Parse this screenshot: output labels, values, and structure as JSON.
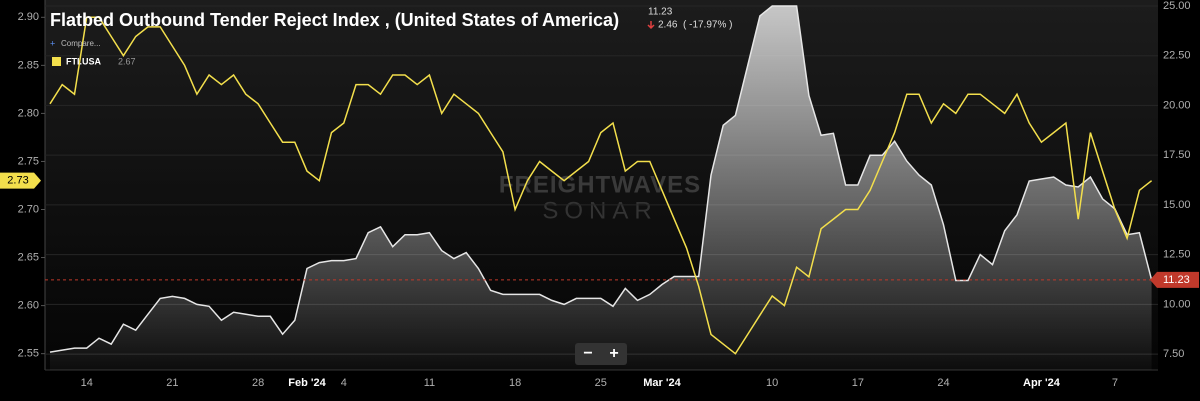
{
  "header": {
    "value": "11.23",
    "change": "2.46",
    "change_pct": "( -17.97% )",
    "compare": "Compare...",
    "legend_value": "2.67"
  },
  "watermark": {
    "brand": "FREIGHTWAVES",
    "product": "SONAR"
  },
  "zoom": {
    "minus": "−",
    "plus": "+"
  },
  "chart_data": {
    "type": "line",
    "title": "Flatbed Outbound Tender Reject Index , (United States of America)",
    "categories": [
      null,
      null,
      null,
      "14",
      null,
      null,
      null,
      null,
      null,
      null,
      "21",
      null,
      null,
      null,
      null,
      null,
      null,
      "28",
      null,
      null,
      null,
      "Feb '24",
      null,
      null,
      "4",
      null,
      null,
      null,
      null,
      null,
      null,
      "11",
      null,
      null,
      null,
      null,
      null,
      null,
      "18",
      null,
      null,
      null,
      null,
      null,
      null,
      "25",
      null,
      null,
      null,
      null,
      "Mar '24",
      null,
      null,
      null,
      null,
      null,
      null,
      null,
      null,
      "10",
      null,
      null,
      null,
      null,
      null,
      null,
      "17",
      null,
      null,
      null,
      null,
      null,
      null,
      "24",
      null,
      null,
      null,
      null,
      null,
      null,
      null,
      "Apr '24",
      null,
      null,
      null,
      null,
      null,
      "7",
      null,
      null,
      null
    ],
    "series": [
      {
        "name": "FTI.USA",
        "color": "#f3df4c",
        "axis": "y",
        "last_label": "2.73",
        "values": [
          2.81,
          2.83,
          2.82,
          2.9,
          2.9,
          2.88,
          2.86,
          2.88,
          2.89,
          2.89,
          2.87,
          2.85,
          2.82,
          2.84,
          2.83,
          2.84,
          2.82,
          2.81,
          2.79,
          2.77,
          2.77,
          2.74,
          2.73,
          2.78,
          2.79,
          2.83,
          2.83,
          2.82,
          2.84,
          2.84,
          2.83,
          2.84,
          2.8,
          2.82,
          2.81,
          2.8,
          2.78,
          2.76,
          2.7,
          2.73,
          2.75,
          2.74,
          2.73,
          2.74,
          2.75,
          2.78,
          2.79,
          2.74,
          2.75,
          2.75,
          2.72,
          2.69,
          2.66,
          2.62,
          2.57,
          2.56,
          2.55,
          2.57,
          2.59,
          2.61,
          2.6,
          2.64,
          2.63,
          2.68,
          2.69,
          2.7,
          2.7,
          2.72,
          2.75,
          2.78,
          2.82,
          2.82,
          2.79,
          2.81,
          2.8,
          2.82,
          2.82,
          2.81,
          2.8,
          2.82,
          2.79,
          2.77,
          2.78,
          2.79,
          2.69,
          2.78,
          2.74,
          2.7,
          2.67,
          2.72,
          2.73
        ]
      },
      {
        "color": "#e6e6e6",
        "axis": "y2",
        "last_label": "11.23",
        "values": [
          7.6,
          7.7,
          7.8,
          7.8,
          8.3,
          8.0,
          9.0,
          8.7,
          9.5,
          10.3,
          10.4,
          10.3,
          10.0,
          9.9,
          9.2,
          9.6,
          9.5,
          9.4,
          9.4,
          8.5,
          9.2,
          11.8,
          12.1,
          12.2,
          12.2,
          12.3,
          13.6,
          13.9,
          12.9,
          13.5,
          13.5,
          13.6,
          12.7,
          12.3,
          12.6,
          11.8,
          10.7,
          10.5,
          10.5,
          10.5,
          10.5,
          10.2,
          10.0,
          10.3,
          10.3,
          10.3,
          9.9,
          10.8,
          10.2,
          10.5,
          11.0,
          11.4,
          11.4,
          11.4,
          16.5,
          19.0,
          19.5,
          22.0,
          24.5,
          25.0,
          25.0,
          25.0,
          20.5,
          18.5,
          18.6,
          16.0,
          16.0,
          17.5,
          17.5,
          18.2,
          17.2,
          16.5,
          16.0,
          14.0,
          11.2,
          11.2,
          12.5,
          12.0,
          13.7,
          14.5,
          16.2,
          16.3,
          16.4,
          16.0,
          15.9,
          16.4,
          15.3,
          14.8,
          13.5,
          13.6,
          11.23
        ]
      }
    ],
    "ylim": [
      2.533,
      2.918
    ],
    "yticks": [
      {
        "value": 2.55,
        "label": "2.55"
      },
      {
        "value": 2.6,
        "label": "2.60"
      },
      {
        "value": 2.65,
        "label": "2.65"
      },
      {
        "value": 2.7,
        "label": "2.70"
      },
      {
        "value": 2.75,
        "label": "2.75"
      },
      {
        "value": 2.8,
        "label": "2.80"
      },
      {
        "value": 2.85,
        "label": "2.85"
      },
      {
        "value": 2.9,
        "label": "2.90"
      }
    ],
    "y2lim": [
      6.7,
      25.3
    ],
    "y2ticks": [
      {
        "value": 7.5,
        "label": "7.50"
      },
      {
        "value": 10,
        "label": "10.00"
      },
      {
        "value": 12.5,
        "label": "12.50"
      },
      {
        "value": 15,
        "label": "15.00"
      },
      {
        "value": 17.5,
        "label": "17.50"
      },
      {
        "value": 20,
        "label": "20.00"
      },
      {
        "value": 22.5,
        "label": "22.50"
      },
      {
        "value": 25,
        "label": "25.00"
      }
    ],
    "grid": true
  }
}
